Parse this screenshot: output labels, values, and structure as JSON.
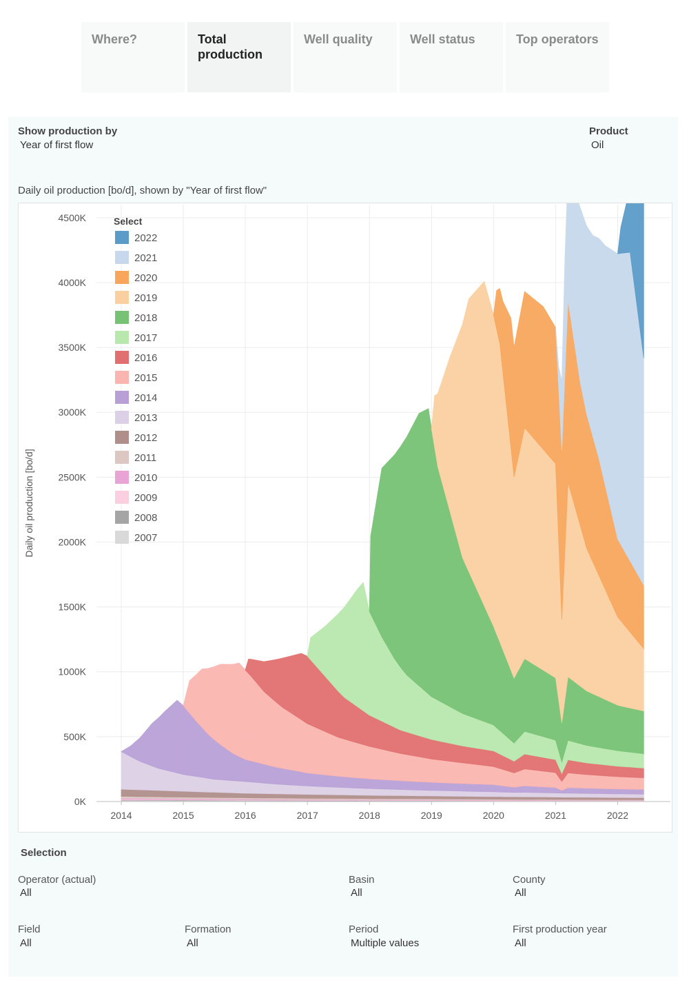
{
  "tabs": [
    {
      "label": "Where?",
      "active": false
    },
    {
      "label": "Total production",
      "active": true
    },
    {
      "label": "Well quality",
      "active": false
    },
    {
      "label": "Well status",
      "active": false
    },
    {
      "label": "Top operators",
      "active": false
    }
  ],
  "controls": {
    "show_by_label": "Show production by",
    "show_by_value": "Year of first flow",
    "product_label": "Product",
    "product_value": "Oil"
  },
  "chart_title": "Daily oil production [bo/d], shown by \"Year of first flow\"",
  "chart_data": {
    "type": "area",
    "stacked": true,
    "title": "Daily oil production [bo/d], shown by \"Year of first flow\"",
    "xlabel": "",
    "ylabel": "Daily oil production [bo/d]",
    "xlim": [
      2013.6,
      2022.85
    ],
    "ylim": [
      0,
      4600
    ],
    "y_unit_suffix": "K",
    "x_ticks": [
      2014,
      2015,
      2016,
      2017,
      2018,
      2019,
      2020,
      2021,
      2022
    ],
    "y_ticks": [
      0,
      500,
      1000,
      1500,
      2000,
      2500,
      3000,
      3500,
      4000,
      4500
    ],
    "grid": true,
    "legend_title": "Select",
    "legend_position": "top-left",
    "layer_order": [
      "2007",
      "2008",
      "2009",
      "2010",
      "2011",
      "2012",
      "2013",
      "2014",
      "2015",
      "2016",
      "2017",
      "2018",
      "2019",
      "2020",
      "2021",
      "2022"
    ],
    "legend": [
      {
        "name": "2022",
        "color": "#5b9bc8"
      },
      {
        "name": "2021",
        "color": "#c7d8ec"
      },
      {
        "name": "2020",
        "color": "#f8a65c"
      },
      {
        "name": "2019",
        "color": "#fbd0a1"
      },
      {
        "name": "2018",
        "color": "#77c275"
      },
      {
        "name": "2017",
        "color": "#b8e8ad"
      },
      {
        "name": "2016",
        "color": "#e16f6f"
      },
      {
        "name": "2015",
        "color": "#fbb5b0"
      },
      {
        "name": "2014",
        "color": "#b8a0d6"
      },
      {
        "name": "2013",
        "color": "#dcd0e6"
      },
      {
        "name": "2012",
        "color": "#b08e8a"
      },
      {
        "name": "2011",
        "color": "#dcc7c2"
      },
      {
        "name": "2010",
        "color": "#e8a4d4"
      },
      {
        "name": "2009",
        "color": "#fad0e0"
      },
      {
        "name": "2008",
        "color": "#a5a5a5"
      },
      {
        "name": "2007",
        "color": "#d9d9d9"
      }
    ],
    "series": [
      {
        "name": "2007",
        "color": "#d9d9d9",
        "points": [
          [
            2014,
            8
          ],
          [
            2015,
            7
          ],
          [
            2016,
            6
          ],
          [
            2017,
            5
          ],
          [
            2018,
            4
          ],
          [
            2019,
            4
          ],
          [
            2020,
            3
          ],
          [
            2021,
            3
          ],
          [
            2022,
            3
          ],
          [
            2022.42,
            3
          ]
        ]
      },
      {
        "name": "2008",
        "color": "#a5a5a5",
        "points": [
          [
            2014,
            4
          ],
          [
            2015,
            4
          ],
          [
            2016,
            3
          ],
          [
            2017,
            3
          ],
          [
            2018,
            3
          ],
          [
            2019,
            3
          ],
          [
            2020,
            2
          ],
          [
            2021,
            2
          ],
          [
            2022,
            2
          ],
          [
            2022.42,
            2
          ]
        ]
      },
      {
        "name": "2009",
        "color": "#fad0e0",
        "points": [
          [
            2014,
            5
          ],
          [
            2015,
            4
          ],
          [
            2016,
            4
          ],
          [
            2017,
            3
          ],
          [
            2018,
            3
          ],
          [
            2019,
            3
          ],
          [
            2020,
            3
          ],
          [
            2021,
            2
          ],
          [
            2022,
            2
          ],
          [
            2022.42,
            2
          ]
        ]
      },
      {
        "name": "2010",
        "color": "#e8a4d4",
        "points": [
          [
            2014,
            8
          ],
          [
            2015,
            7
          ],
          [
            2016,
            6
          ],
          [
            2017,
            5
          ],
          [
            2018,
            5
          ],
          [
            2019,
            4
          ],
          [
            2020,
            4
          ],
          [
            2021,
            3
          ],
          [
            2022,
            3
          ],
          [
            2022.42,
            3
          ]
        ]
      },
      {
        "name": "2011",
        "color": "#dcc7c2",
        "points": [
          [
            2014,
            15
          ],
          [
            2015,
            12
          ],
          [
            2016,
            10
          ],
          [
            2017,
            9
          ],
          [
            2018,
            8
          ],
          [
            2019,
            7
          ],
          [
            2020,
            6
          ],
          [
            2021,
            6
          ],
          [
            2022,
            5
          ],
          [
            2022.42,
            5
          ]
        ]
      },
      {
        "name": "2012",
        "color": "#b08e8a",
        "points": [
          [
            2014,
            55
          ],
          [
            2015,
            45
          ],
          [
            2016,
            35
          ],
          [
            2017,
            30
          ],
          [
            2018,
            25
          ],
          [
            2019,
            22
          ],
          [
            2020,
            20
          ],
          [
            2021,
            18
          ],
          [
            2022,
            16
          ],
          [
            2022.42,
            15
          ]
        ]
      },
      {
        "name": "2013",
        "color": "#dcd0e6",
        "points": [
          [
            2014,
            290
          ],
          [
            2014.3,
            220
          ],
          [
            2014.6,
            170
          ],
          [
            2015,
            130
          ],
          [
            2015.5,
            100
          ],
          [
            2016,
            90
          ],
          [
            2016.5,
            75
          ],
          [
            2017,
            65
          ],
          [
            2017.5,
            58
          ],
          [
            2018,
            52
          ],
          [
            2018.5,
            47
          ],
          [
            2019,
            43
          ],
          [
            2019.5,
            40
          ],
          [
            2020,
            37
          ],
          [
            2020.33,
            34
          ],
          [
            2020.5,
            35
          ],
          [
            2021,
            32
          ],
          [
            2021.5,
            30
          ],
          [
            2022,
            28
          ],
          [
            2022.42,
            27
          ]
        ]
      },
      {
        "name": "2014",
        "color": "#b8a0d6",
        "points": [
          [
            2014,
            0
          ],
          [
            2014.15,
            80
          ],
          [
            2014.3,
            180
          ],
          [
            2014.5,
            330
          ],
          [
            2014.7,
            450
          ],
          [
            2014.9,
            560
          ],
          [
            2015,
            530
          ],
          [
            2015.2,
            430
          ],
          [
            2015.4,
            340
          ],
          [
            2015.6,
            270
          ],
          [
            2015.8,
            210
          ],
          [
            2016,
            170
          ],
          [
            2016.5,
            130
          ],
          [
            2017,
            100
          ],
          [
            2017.5,
            85
          ],
          [
            2018,
            75
          ],
          [
            2018.5,
            68
          ],
          [
            2019,
            62
          ],
          [
            2019.5,
            58
          ],
          [
            2020,
            55
          ],
          [
            2020.33,
            40
          ],
          [
            2020.5,
            50
          ],
          [
            2021,
            42
          ],
          [
            2021.1,
            20
          ],
          [
            2021.2,
            42
          ],
          [
            2021.5,
            40
          ],
          [
            2022,
            38
          ],
          [
            2022.42,
            36
          ]
        ]
      },
      {
        "name": "2015",
        "color": "#fbb5b0",
        "points": [
          [
            2015,
            0
          ],
          [
            2015.1,
            250
          ],
          [
            2015.3,
            450
          ],
          [
            2015.6,
            620
          ],
          [
            2015.9,
            720
          ],
          [
            2016,
            690
          ],
          [
            2016.1,
            650
          ],
          [
            2016.3,
            560
          ],
          [
            2016.6,
            470
          ],
          [
            2017,
            380
          ],
          [
            2017.5,
            300
          ],
          [
            2018,
            250
          ],
          [
            2018.5,
            210
          ],
          [
            2019,
            180
          ],
          [
            2019.5,
            160
          ],
          [
            2020,
            140
          ],
          [
            2020.33,
            110
          ],
          [
            2020.5,
            130
          ],
          [
            2021,
            115
          ],
          [
            2021.1,
            70
          ],
          [
            2021.2,
            115
          ],
          [
            2021.5,
            105
          ],
          [
            2022,
            95
          ],
          [
            2022.42,
            90
          ]
        ]
      },
      {
        "name": "2016",
        "color": "#e16f6f",
        "points": [
          [
            2016,
            0
          ],
          [
            2016.05,
            110
          ],
          [
            2016.3,
            230
          ],
          [
            2016.6,
            380
          ],
          [
            2016.9,
            510
          ],
          [
            2017,
            520
          ],
          [
            2017.3,
            420
          ],
          [
            2017.6,
            320
          ],
          [
            2018,
            240
          ],
          [
            2018.5,
            180
          ],
          [
            2019,
            150
          ],
          [
            2019.5,
            130
          ],
          [
            2020,
            120
          ],
          [
            2020.33,
            90
          ],
          [
            2020.5,
            115
          ],
          [
            2021,
            100
          ],
          [
            2021.1,
            60
          ],
          [
            2021.2,
            100
          ],
          [
            2021.5,
            90
          ],
          [
            2022,
            80
          ],
          [
            2022.42,
            75
          ]
        ]
      },
      {
        "name": "2017",
        "color": "#b8e8ad",
        "points": [
          [
            2017,
            0
          ],
          [
            2017.05,
            170
          ],
          [
            2017.3,
            400
          ],
          [
            2017.6,
            700
          ],
          [
            2017.8,
            900
          ],
          [
            2017.9,
            990
          ],
          [
            2018,
            800
          ],
          [
            2018.2,
            650
          ],
          [
            2018.4,
            530
          ],
          [
            2018.6,
            440
          ],
          [
            2019,
            330
          ],
          [
            2019.5,
            250
          ],
          [
            2020,
            200
          ],
          [
            2020.33,
            140
          ],
          [
            2020.5,
            175
          ],
          [
            2021,
            150
          ],
          [
            2021.1,
            90
          ],
          [
            2021.2,
            150
          ],
          [
            2021.5,
            135
          ],
          [
            2022,
            120
          ],
          [
            2022.42,
            110
          ]
        ]
      },
      {
        "name": "2018",
        "color": "#77c275",
        "points": [
          [
            2018,
            0
          ],
          [
            2018.02,
            600
          ],
          [
            2018.2,
            1300
          ],
          [
            2018.5,
            1700
          ],
          [
            2018.8,
            2100
          ],
          [
            2018.95,
            2200
          ],
          [
            2019.1,
            1800
          ],
          [
            2019.5,
            1200
          ],
          [
            2020,
            760
          ],
          [
            2020.33,
            500
          ],
          [
            2020.5,
            560
          ],
          [
            2021,
            480
          ],
          [
            2021.1,
            300
          ],
          [
            2021.2,
            490
          ],
          [
            2021.5,
            420
          ],
          [
            2022,
            350
          ],
          [
            2022.42,
            330
          ]
        ]
      },
      {
        "name": "2019",
        "color": "#fbd0a1",
        "points": [
          [
            2019,
            0
          ],
          [
            2019.05,
            400
          ],
          [
            2019.3,
            1200
          ],
          [
            2019.6,
            2100
          ],
          [
            2019.85,
            2500
          ],
          [
            2020,
            2400
          ],
          [
            2020.1,
            2300
          ],
          [
            2020.33,
            1550
          ],
          [
            2020.5,
            1780
          ],
          [
            2021,
            1650
          ],
          [
            2021.1,
            800
          ],
          [
            2021.2,
            1500
          ],
          [
            2021.5,
            1100
          ],
          [
            2022,
            680
          ],
          [
            2022.42,
            480
          ]
        ]
      },
      {
        "name": "2020",
        "color": "#f8a65c",
        "points": [
          [
            2020,
            0
          ],
          [
            2020.05,
            300
          ],
          [
            2020.15,
            550
          ],
          [
            2020.28,
            1000
          ],
          [
            2020.33,
            1000
          ],
          [
            2020.5,
            1050
          ],
          [
            2020.8,
            1100
          ],
          [
            2021,
            1050
          ],
          [
            2021.1,
            1300
          ],
          [
            2021.2,
            1400
          ],
          [
            2021.4,
            1100
          ],
          [
            2021.7,
            900
          ],
          [
            2022,
            600
          ],
          [
            2022.42,
            490
          ]
        ]
      },
      {
        "name": "2021",
        "color": "#c7d8ec",
        "points": [
          [
            2021,
            0
          ],
          [
            2021.05,
            170
          ],
          [
            2021.15,
            900
          ],
          [
            2021.4,
            1350
          ],
          [
            2021.6,
            1550
          ],
          [
            2021.8,
            1850
          ],
          [
            2022,
            2200
          ],
          [
            2022.2,
            2380
          ],
          [
            2022.42,
            1750
          ]
        ]
      },
      {
        "name": "2022",
        "color": "#5b9bc8",
        "points": [
          [
            2022,
            0
          ],
          [
            2022.05,
            200
          ],
          [
            2022.2,
            500
          ],
          [
            2022.3,
            900
          ],
          [
            2022.42,
            1300
          ]
        ]
      }
    ]
  },
  "selection": {
    "title": "Selection",
    "filters": [
      {
        "label": "Operator (actual)",
        "value": "All"
      },
      {
        "label": "Basin",
        "value": "All"
      },
      {
        "label": "County",
        "value": "All"
      },
      {
        "label": "Field",
        "value": "All"
      },
      {
        "label": "Formation",
        "value": "All"
      },
      {
        "label": "Period",
        "value": "Multiple values"
      },
      {
        "label": "First production year",
        "value": "All"
      }
    ]
  }
}
